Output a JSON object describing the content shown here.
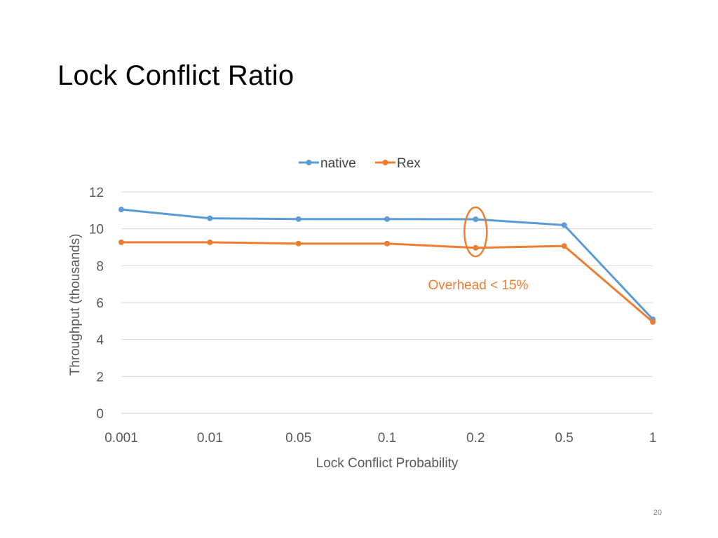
{
  "slide": {
    "title": "Lock Conflict Ratio",
    "page_number": "20"
  },
  "chart_data": {
    "type": "line",
    "categories": [
      "0.001",
      "0.01",
      "0.05",
      "0.1",
      "0.2",
      "0.5",
      "1"
    ],
    "series": [
      {
        "name": "native",
        "color": "#5B9BD5",
        "values": [
          11.05,
          10.57,
          10.53,
          10.53,
          10.52,
          10.2,
          5.1
        ]
      },
      {
        "name": "Rex",
        "color": "#ED7D31",
        "values": [
          9.27,
          9.27,
          9.2,
          9.2,
          8.97,
          9.07,
          4.95
        ]
      }
    ],
    "xlabel": "Lock Conflict Probability",
    "ylabel": "Throughput (thousands)",
    "ylim": [
      0,
      12
    ],
    "yticks": [
      0,
      2,
      4,
      6,
      8,
      10,
      12
    ],
    "grid": true,
    "legend_position": "top",
    "annotation": {
      "text": "Overhead < 15%",
      "color": "#ED7D31",
      "target_category": "0.2"
    }
  }
}
